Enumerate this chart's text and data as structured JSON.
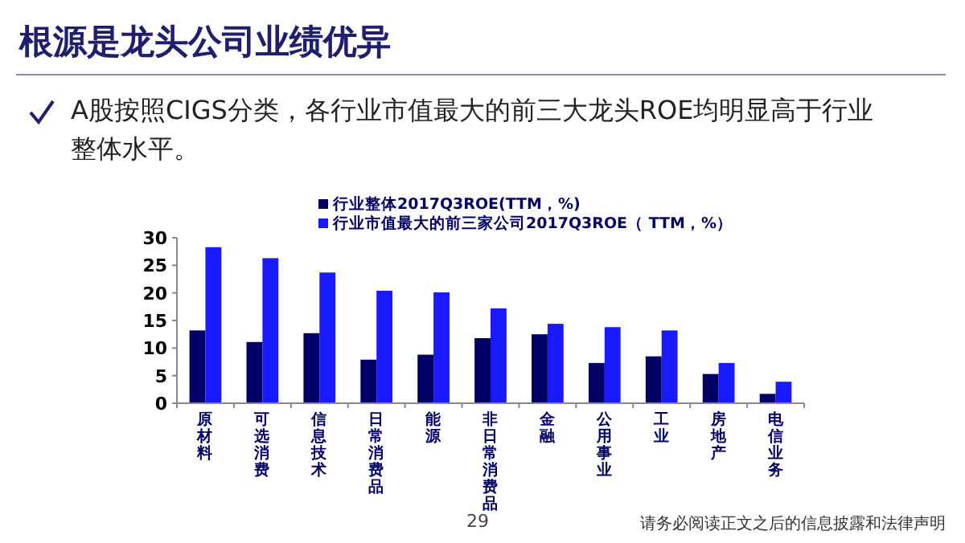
{
  "chart_data": {
    "type": "bar",
    "title": "根源是龙头公司业绩优异",
    "subtitle": "A股按照CIGS分类，各行业市值最大的前三大龙头ROE均明显高于行业整体水平。",
    "categories": [
      "原材料",
      "可选消费",
      "信息技术",
      "日常消费品",
      "能源",
      "非日常消费品",
      "金融",
      "公用事业",
      "工业",
      "房地产",
      "电信业务"
    ],
    "series": [
      {
        "name": "行业整体2017Q3ROE(TTM，%)",
        "color": "#000066",
        "values": [
          13.2,
          11.1,
          12.7,
          7.9,
          8.8,
          11.8,
          12.5,
          7.3,
          8.5,
          5.3,
          1.7
        ]
      },
      {
        "name": "行业市值最大的前三家公司2017Q3ROE（ TTM，%）",
        "color": "#1a1aff",
        "values": [
          28.3,
          26.3,
          23.7,
          20.4,
          20.1,
          17.2,
          14.4,
          13.8,
          13.2,
          7.3,
          3.9
        ]
      }
    ],
    "ylim": [
      0,
      30
    ],
    "yticks": [
      0,
      5,
      10,
      15,
      20,
      25,
      30
    ],
    "legend": "top",
    "grid": false,
    "annotations": [
      "29",
      "请务必阅读正文之后的信息披露和法律声明"
    ]
  }
}
